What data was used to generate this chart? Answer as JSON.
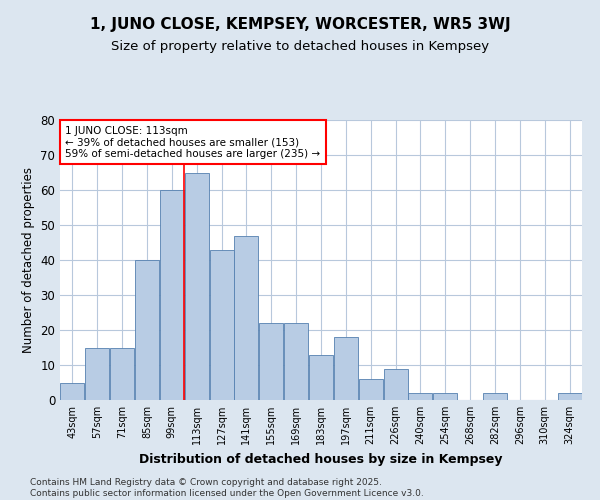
{
  "title": "1, JUNO CLOSE, KEMPSEY, WORCESTER, WR5 3WJ",
  "subtitle": "Size of property relative to detached houses in Kempsey",
  "xlabel": "Distribution of detached houses by size in Kempsey",
  "ylabel": "Number of detached properties",
  "categories": [
    "43sqm",
    "57sqm",
    "71sqm",
    "85sqm",
    "99sqm",
    "113sqm",
    "127sqm",
    "141sqm",
    "155sqm",
    "169sqm",
    "183sqm",
    "197sqm",
    "211sqm",
    "226sqm",
    "240sqm",
    "254sqm",
    "268sqm",
    "282sqm",
    "296sqm",
    "310sqm",
    "324sqm"
  ],
  "values": [
    5,
    15,
    15,
    40,
    60,
    65,
    43,
    47,
    22,
    22,
    13,
    18,
    6,
    9,
    2,
    2,
    0,
    2,
    0,
    0,
    2
  ],
  "bar_color": "#b8cce4",
  "bar_edge_color": "#5580b0",
  "red_line_x": 4.5,
  "annotation_text": "1 JUNO CLOSE: 113sqm\n← 39% of detached houses are smaller (153)\n59% of semi-detached houses are larger (235) →",
  "annotation_box_color": "white",
  "annotation_box_edge_color": "red",
  "ylim": [
    0,
    80
  ],
  "yticks": [
    0,
    10,
    20,
    30,
    40,
    50,
    60,
    70,
    80
  ],
  "title_fontsize": 11,
  "subtitle_fontsize": 9.5,
  "background_color": "#dce6f0",
  "plot_background_color": "white",
  "footer_text": "Contains HM Land Registry data © Crown copyright and database right 2025.\nContains public sector information licensed under the Open Government Licence v3.0.",
  "grid_color": "#b8c8dc"
}
